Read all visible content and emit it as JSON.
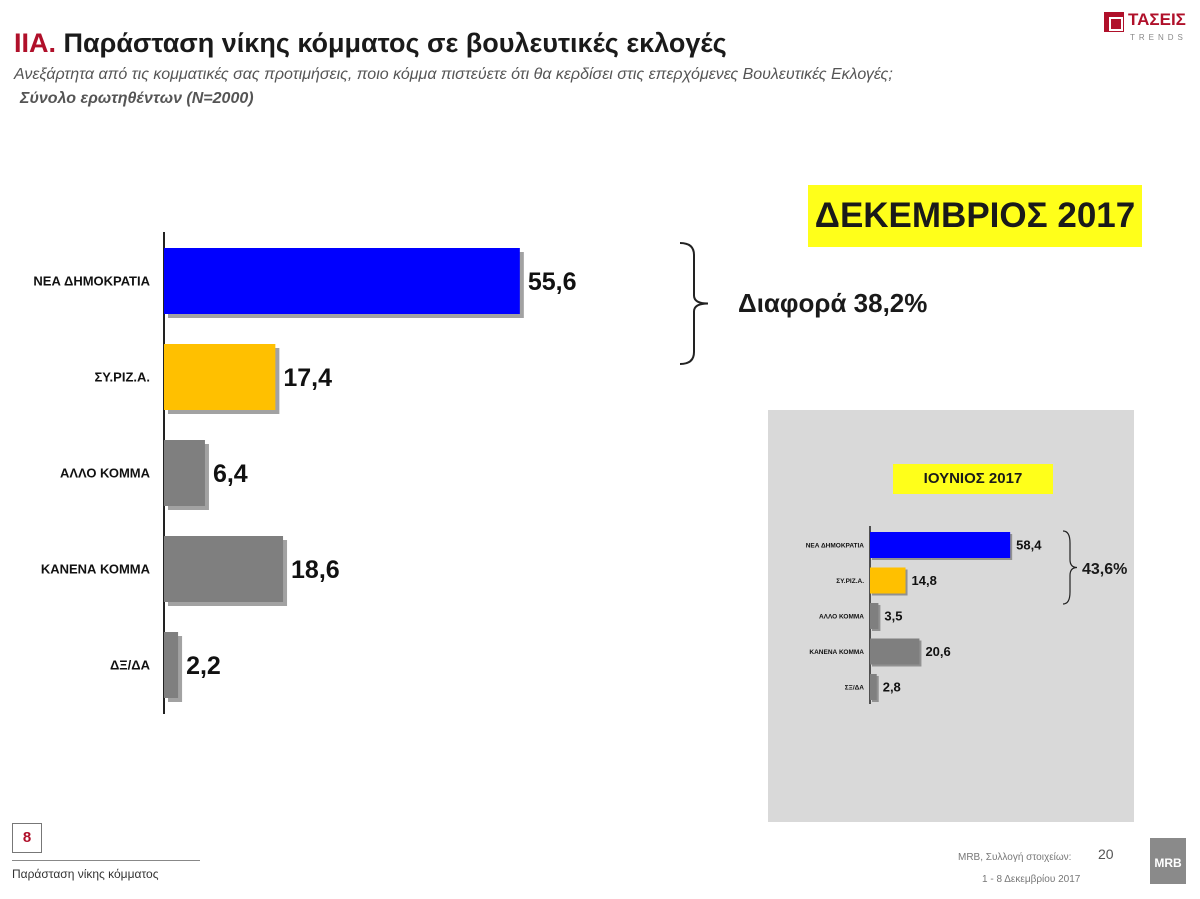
{
  "header": {
    "title_prefix": "IIA.",
    "title": "Παράσταση νίκης κόμματος σε βουλευτικές εκλογές",
    "subtitle": "Ανεξάρτητα από τις κομματικές σας προτιμήσεις, ποιο κόμμα πιστεύετε ότι θα κερδίσει στις επερχόμενες Βουλευτικές Εκλογές;",
    "base": "Σύνολο ερωτηθέντων (N=2000)"
  },
  "logo": {
    "name": "ΤΑΣΕΙΣ",
    "tag": "TRENDS"
  },
  "colors": {
    "blue": "#0000ff",
    "yellow": "#ffc000",
    "gray": "#7f7f7f",
    "accent": "#b0102a",
    "highlight": "#ffff1a"
  },
  "chart_data": [
    {
      "type": "bar",
      "orientation": "horizontal",
      "period": "ΔΕΚΕΜΒΡΙΟΣ 2017",
      "categories": [
        "ΝΕΑ ΔΗΜΟΚΡΑΤΙΑ",
        "ΣΥ.ΡΙΖ.Α.",
        "ΑΛΛΟ ΚΟΜΜΑ",
        "ΚΑΝΕΝΑ ΚΟΜΜΑ",
        "ΔΞ/ΔΑ"
      ],
      "values": [
        55.6,
        17.4,
        6.4,
        18.6,
        2.2
      ],
      "value_labels": [
        "55,6",
        "17,4",
        "6,4",
        "18,6",
        "2,2"
      ],
      "bar_colors": [
        "#0000ff",
        "#ffc000",
        "#7f7f7f",
        "#7f7f7f",
        "#7f7f7f"
      ],
      "annotation": "Διαφορά 38,2%",
      "xlim": [
        0,
        100
      ]
    },
    {
      "type": "bar",
      "orientation": "horizontal",
      "period": "ΙΟΥΝΙΟΣ 2017",
      "categories": [
        "ΝΕΑ ΔΗΜΟΚΡΑΤΙΑ",
        "ΣΥ.ΡΙΖ.Α.",
        "ΑΛΛΟ ΚΟΜΜΑ",
        "ΚΑΝΕΝΑ ΚΟΜΜΑ",
        "ΣΞ/ΔΑ"
      ],
      "values": [
        58.4,
        14.8,
        3.5,
        20.6,
        2.8
      ],
      "value_labels": [
        "58,4",
        "14,8",
        "3,5",
        "20,6",
        "2,8"
      ],
      "bar_colors": [
        "#0000ff",
        "#ffc000",
        "#7f7f7f",
        "#7f7f7f",
        "#7f7f7f"
      ],
      "annotation": "43,6%",
      "xlim": [
        0,
        100
      ]
    }
  ],
  "footer": {
    "page_number": "8",
    "title": "Παράσταση νίκης κόμματος",
    "source_line1": "MRB, Συλλογή στοιχείων:",
    "source_number": "20",
    "source_line2": "1 - 8 Δεκεμβρίου 2017",
    "brand": "MRB"
  }
}
